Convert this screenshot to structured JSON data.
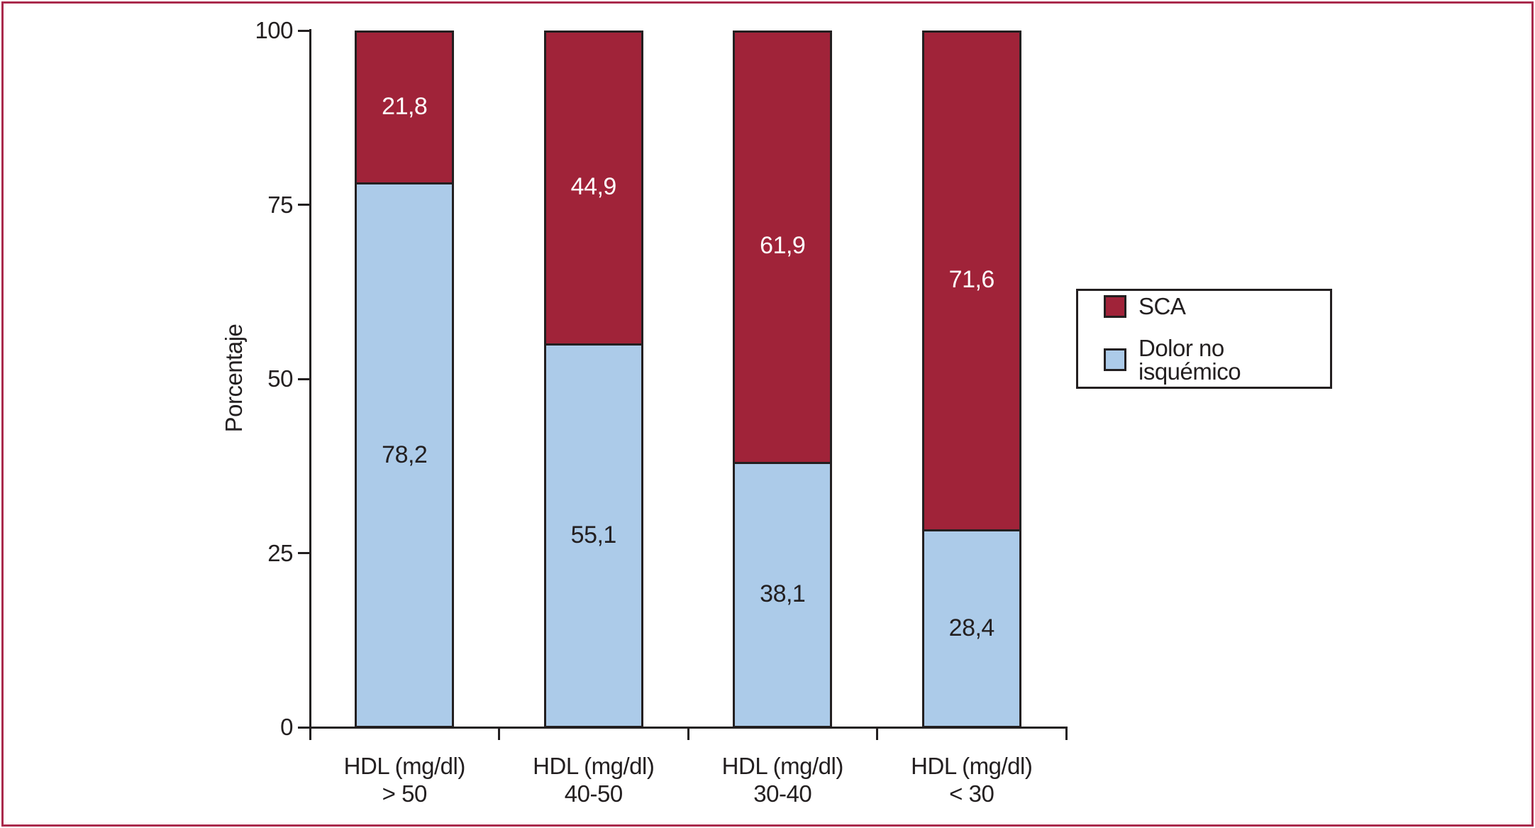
{
  "figure": {
    "frame_color": "#AA2B4D",
    "axis_color": "#231F20",
    "text_color": "#231F20",
    "background": "#FFFFFF"
  },
  "chart_data": {
    "type": "bar",
    "stacked": true,
    "orientation": "vertical",
    "ylabel": "Porcentaje",
    "ylim": [
      0,
      100
    ],
    "yticks": [
      0,
      25,
      50,
      75,
      100
    ],
    "grid": false,
    "categories": [
      {
        "line1": "HDL (mg/dl)",
        "line2": "> 50"
      },
      {
        "line1": "HDL (mg/dl)",
        "line2": "40-50"
      },
      {
        "line1": "HDL (mg/dl)",
        "line2": "30-40"
      },
      {
        "line1": "HDL (mg/dl)",
        "line2": "< 30"
      }
    ],
    "series": [
      {
        "name": "Dolor no isquémico",
        "color": "#ACCBE9",
        "label_color": "#231F20",
        "values": [
          78.2,
          55.1,
          38.1,
          28.4
        ],
        "labels": [
          "78,2",
          "55,1",
          "38,1",
          "28,4"
        ]
      },
      {
        "name": "SCA",
        "color": "#A02339",
        "label_color": "#FFFFFF",
        "values": [
          21.8,
          44.9,
          61.9,
          71.6
        ],
        "labels": [
          "21,8",
          "44,9",
          "61,9",
          "71,6"
        ]
      }
    ],
    "legend": {
      "position": "right",
      "items": [
        {
          "label": "SCA",
          "color": "#A02339"
        },
        {
          "label": "Dolor no isquémico",
          "color": "#ACCBE9"
        }
      ]
    }
  }
}
